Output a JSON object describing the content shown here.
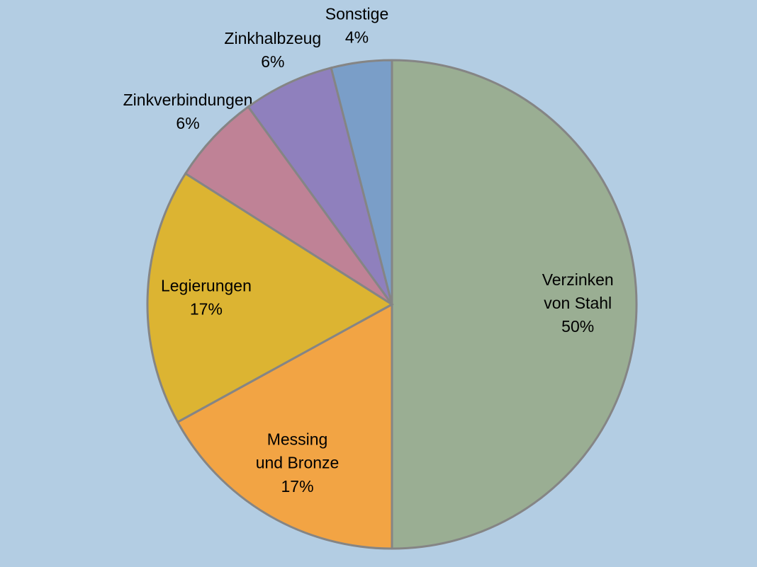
{
  "chart_data": {
    "type": "pie",
    "categories": [
      "Verzinken von Stahl",
      "Messing und Bronze",
      "Legierungen",
      "Zinkverbindungen",
      "Zinkhalbzeug",
      "Sonstige"
    ],
    "values": [
      50,
      17,
      17,
      6,
      6,
      4
    ],
    "value_labels": [
      "50%",
      "17%",
      "17%",
      "6%",
      "6%",
      "4%"
    ],
    "colors": [
      "#9aae93",
      "#f2a444",
      "#dcb432",
      "#bf8296",
      "#8f80bd",
      "#7a9ec8"
    ]
  }
}
